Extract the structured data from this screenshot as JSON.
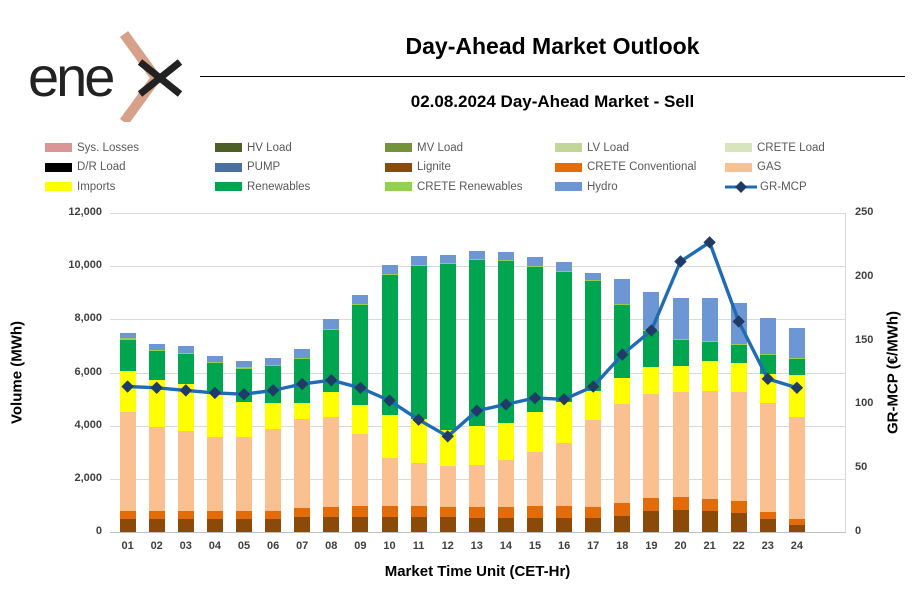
{
  "header": {
    "logo_text": "ene",
    "title": "Day-Ahead Market Outlook",
    "subtitle": "02.08.2024  Day-Ahead Market - Sell"
  },
  "legend": {
    "items": [
      {
        "label": "Sys. Losses",
        "color": "#D99694",
        "type": "swatch"
      },
      {
        "label": "HV Load",
        "color": "#4C5F27",
        "type": "swatch"
      },
      {
        "label": "MV Load",
        "color": "#73923A",
        "type": "swatch"
      },
      {
        "label": "LV Load",
        "color": "#C2D69A",
        "type": "swatch"
      },
      {
        "label": "CRETE Load",
        "color": "#D8E4BC",
        "type": "swatch"
      },
      {
        "label": "D/R Load",
        "color": "#000000",
        "type": "swatch"
      },
      {
        "label": "PUMP",
        "color": "#4A6FA5",
        "type": "swatch"
      },
      {
        "label": "Lignite",
        "color": "#8C4A08",
        "type": "swatch"
      },
      {
        "label": "CRETE Conventional",
        "color": "#E36C09",
        "type": "swatch"
      },
      {
        "label": "GAS",
        "color": "#FAC090",
        "type": "swatch"
      },
      {
        "label": "Imports",
        "color": "#FFFF00",
        "type": "swatch"
      },
      {
        "label": "Renewables",
        "color": "#00A550",
        "type": "swatch"
      },
      {
        "label": "CRETE Renewables",
        "color": "#92D050",
        "type": "swatch"
      },
      {
        "label": "Hydro",
        "color": "#6D96D5",
        "type": "swatch"
      },
      {
        "label": "GR-MCP",
        "color": "#1F6CB5",
        "type": "line"
      }
    ]
  },
  "chart_data": {
    "type": "bar",
    "stacked": true,
    "xlabel": "Market Time Unit (CET-Hr)",
    "categories": [
      "01",
      "02",
      "03",
      "04",
      "05",
      "06",
      "07",
      "08",
      "09",
      "10",
      "11",
      "12",
      "13",
      "14",
      "15",
      "16",
      "17",
      "18",
      "19",
      "20",
      "21",
      "22",
      "23",
      "24"
    ],
    "left_axis": {
      "label": "Volume (MWh)",
      "min": 0,
      "max": 12000,
      "tick_values": [
        0,
        2000,
        4000,
        6000,
        8000,
        10000,
        12000
      ],
      "tick_labels": [
        "0",
        "2,000",
        "4,000",
        "6,000",
        "8,000",
        "10,000",
        "12,000"
      ]
    },
    "right_axis": {
      "label": "GR-MCP (€/MWh)",
      "min": 0,
      "max": 250,
      "tick_values": [
        0,
        50,
        100,
        150,
        200,
        250
      ],
      "tick_labels": [
        "0",
        "50",
        "100",
        "150",
        "200",
        "250"
      ]
    },
    "series": [
      {
        "name": "Lignite",
        "color": "#8C4A08",
        "values": [
          500,
          500,
          500,
          500,
          500,
          500,
          550,
          570,
          570,
          570,
          570,
          550,
          520,
          520,
          520,
          520,
          520,
          600,
          800,
          820,
          800,
          700,
          500,
          280
        ]
      },
      {
        "name": "CRETE Conventional",
        "color": "#E36C09",
        "values": [
          300,
          300,
          300,
          280,
          280,
          300,
          350,
          380,
          420,
          420,
          420,
          400,
          420,
          420,
          460,
          460,
          430,
          500,
          480,
          480,
          440,
          450,
          250,
          220
        ]
      },
      {
        "name": "GAS",
        "color": "#FAC090",
        "values": [
          3700,
          3140,
          2990,
          2780,
          2780,
          3060,
          3370,
          3360,
          2710,
          1790,
          1600,
          1530,
          1570,
          1760,
          2020,
          2370,
          3250,
          3700,
          3900,
          3950,
          4080,
          4100,
          4090,
          3810
        ]
      },
      {
        "name": "Imports",
        "color": "#FFFF00",
        "values": [
          1550,
          1760,
          1760,
          1640,
          1340,
          1010,
          600,
          940,
          1090,
          1620,
          1650,
          1340,
          1470,
          1400,
          1500,
          1550,
          1100,
          1000,
          1010,
          1010,
          1130,
          1090,
          1120,
          1580
        ]
      },
      {
        "name": "Renewables",
        "color": "#00A550",
        "values": [
          1190,
          1120,
          1160,
          1170,
          1250,
          1390,
          1650,
          2350,
          3750,
          5260,
          5760,
          6270,
          6250,
          6090,
          5460,
          4880,
          4140,
          2750,
          1380,
          970,
          710,
          710,
          710,
          630
        ]
      },
      {
        "name": "CRETE Renewables",
        "color": "#92D050",
        "values": [
          50,
          40,
          40,
          40,
          40,
          40,
          40,
          40,
          40,
          40,
          40,
          40,
          40,
          40,
          40,
          40,
          40,
          40,
          40,
          40,
          40,
          40,
          40,
          40
        ]
      },
      {
        "name": "Hydro",
        "color": "#6D96D5",
        "values": [
          190,
          230,
          230,
          230,
          260,
          260,
          340,
          380,
          340,
          340,
          340,
          290,
          300,
          300,
          340,
          340,
          260,
          930,
          1430,
          1540,
          1610,
          1530,
          1350,
          1130
        ]
      }
    ],
    "line_series": {
      "name": "GR-MCP",
      "axis": "right",
      "color": "#1F6CB5",
      "marker_color": "#1F3B66",
      "values": [
        114,
        113,
        111,
        109,
        108,
        111,
        116,
        119,
        113,
        103,
        88,
        75,
        95,
        100,
        105,
        104,
        114,
        139,
        158,
        212,
        227,
        165,
        120,
        113
      ]
    },
    "layout": {
      "grid": true,
      "legend_position": "top"
    }
  },
  "colors": {
    "logo_text": "#222222",
    "logo_chevron": "#D7A189",
    "grid": "#D9D9D9",
    "axis_text": "#3F3F3F"
  }
}
